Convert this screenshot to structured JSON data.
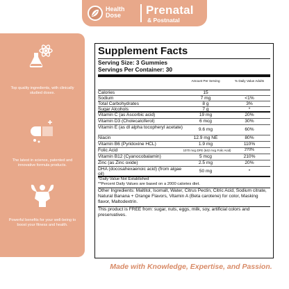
{
  "brand": {
    "logo_line1": "Health",
    "logo_line2": "Dose",
    "product_title": "Prenatal",
    "product_subtitle": "& Postnatal"
  },
  "sidebar": {
    "features": [
      {
        "icon": "flask-atom-icon",
        "text": "Top quality ingredients, with clinically studied doses."
      },
      {
        "icon": "capsule-pill-icon",
        "text": "The latest in science, patented and innovative formula products."
      },
      {
        "icon": "flexed-muscle-icon",
        "text": "Powerful benefits for your well-being to boost your fitness and health."
      }
    ]
  },
  "facts": {
    "title": "Supplement Facts",
    "serving_size": "Serving Size: 3 Gummies",
    "servings_per_container": "Servings Per Container: 30",
    "col_amount": "Amount Per Serving",
    "col_dv": "% Daily Value Adults",
    "rows": [
      {
        "name": "Calories",
        "amount": "15",
        "dv": ""
      },
      {
        "name": "Sodium",
        "amount": "7 mg",
        "dv": "<1%"
      },
      {
        "name": "Total Carbohydrates",
        "amount": "8 g",
        "dv": "3%"
      },
      {
        "name": "Sugar Alcohols",
        "amount": "7 g",
        "dv": "*"
      },
      {
        "name": "Vitamin C (as Ascorbic acid)",
        "amount": "19 mg",
        "dv": "20%"
      },
      {
        "name": "Vitamin D3 (Cholecalciferol)",
        "amount": "6 mcg",
        "dv": "30%"
      },
      {
        "name": "Vitamin E (as dl alpha tocopheryl acetate)",
        "amount": "9.6 mg",
        "dv": "60%"
      },
      {
        "name": "Niacin",
        "amount": "12.9 mg NE",
        "dv": "80%"
      },
      {
        "name": "Vitamin B6 (Pyridoxine HCL)",
        "amount": "1.9 mg",
        "dv": "110%"
      },
      {
        "name": "Folic Acid",
        "amount": "1070 mcg DFE (642 mcg Folic Acid)",
        "dv": "270%"
      },
      {
        "name": "Vitamin B12 (Cyanocobalamin)",
        "amount": "5 mcg",
        "dv": "210%"
      },
      {
        "name": "Zinc (as Zinc oxide)",
        "amount": "2.5 mg",
        "dv": "20%"
      },
      {
        "name": "DHA (docosahexaenoic acid) (from algae oil)",
        "amount": "50 mg",
        "dv": "*"
      }
    ],
    "note_daily": "*Daily Value Not Established",
    "note_percent": "**Percent Daily Values are based on a 2000 calories diet.",
    "other_ingredients": "Other Ingredients: Maltitol, Isomalt, Water, Citrus Pectin, Citric Acid, Sodium citrate, Natural Banana + Orange Flavors, Vitamin A (Beta carotene) for color, Masking flavor, Maltodextrin.",
    "free_from": "This product is FREE from: sugar, nuts, eggs, milk, soy, artificial colors and preservatives."
  },
  "tagline": "Made with Knowledge, Expertise, and Passion."
}
